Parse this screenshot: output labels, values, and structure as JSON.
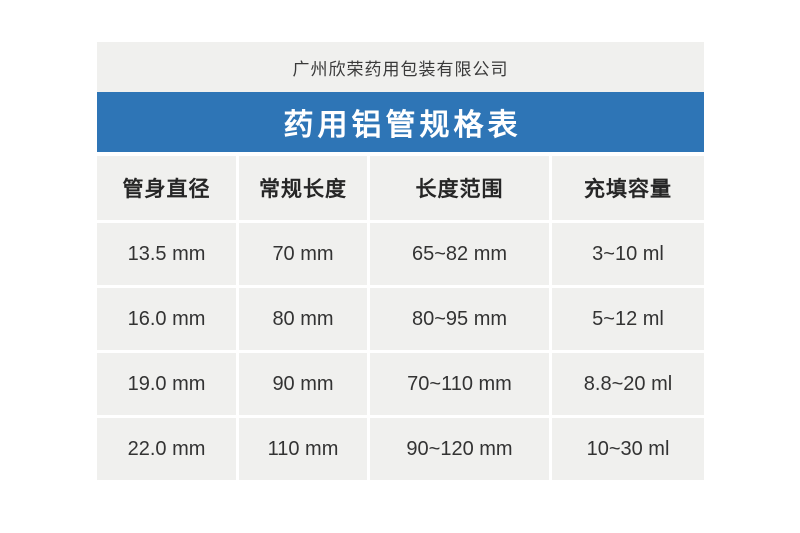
{
  "header": {
    "company_name": "广州欣荣药用包装有限公司",
    "banner_title": "药用铝管规格表"
  },
  "table": {
    "headers": [
      "管身直径",
      "常规长度",
      "长度范围",
      "充填容量"
    ],
    "rows": [
      [
        "13.5 mm",
        "70 mm",
        "65~82 mm",
        "3~10 ml"
      ],
      [
        "16.0 mm",
        "80 mm",
        "80~95 mm",
        "5~12 ml"
      ],
      [
        "19.0 mm",
        "90 mm",
        "70~110 mm",
        "8.8~20 ml"
      ],
      [
        "22.0 mm",
        "110 mm",
        "90~120 mm",
        "10~30 ml"
      ]
    ]
  },
  "colors": {
    "banner_blue": "#2e75b6",
    "cell_gray": "#f0f0ee",
    "text_dark": "#333333",
    "banner_text": "#ffffff"
  },
  "chart_data": {
    "type": "table",
    "title": "药用铝管规格表",
    "subtitle": "广州欣荣药用包装有限公司",
    "columns": [
      "管身直径",
      "常规长度",
      "长度范围",
      "充填容量"
    ],
    "rows": [
      {
        "管身直径": "13.5 mm",
        "常规长度": "70 mm",
        "长度范围": "65~82 mm",
        "充填容量": "3~10 ml"
      },
      {
        "管身直径": "16.0 mm",
        "常规长度": "80 mm",
        "长度范围": "80~95 mm",
        "充填容量": "5~12 ml"
      },
      {
        "管身直径": "19.0 mm",
        "常规长度": "90 mm",
        "长度范围": "70~110 mm",
        "充填容量": "8.8~20 ml"
      },
      {
        "管身直径": "22.0 mm",
        "常规长度": "110 mm",
        "长度范围": "90~120 mm",
        "充填容量": "10~30 ml"
      }
    ]
  }
}
